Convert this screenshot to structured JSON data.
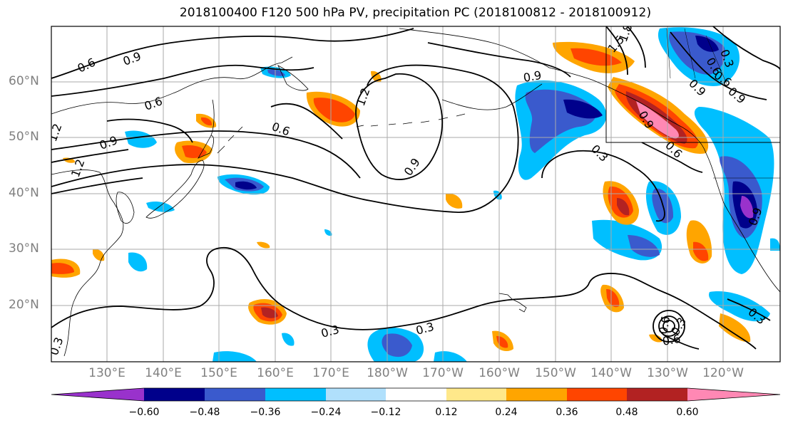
{
  "title": "2018100400 F120 500 hPa PV, precipitation PC (2018100812 - 2018100912)",
  "lat_labels": [
    "60°N",
    "50°N",
    "40°N",
    "30°N",
    "20°N"
  ],
  "lon_labels": [
    "130°E",
    "140°E",
    "150°E",
    "160°E",
    "170°E",
    "180°W",
    "170°W",
    "160°W",
    "150°W",
    "140°W",
    "130°W",
    "120°W"
  ],
  "contour_labels": [
    "0.6",
    "0.9",
    "0.6",
    "0.9",
    "0.6",
    "1.2",
    "0.9",
    "0.9",
    "1.2",
    "0.3",
    "0.3",
    "0.3",
    "0.6",
    "0.9",
    "1.5",
    "1.8",
    "0.6",
    "0.9",
    "0.3",
    "0.6",
    "0.3",
    "0.9",
    "0.6",
    "0.3",
    "0.6",
    "0.9",
    "0.3",
    "1.2"
  ],
  "colorbar": {
    "tick_labels": [
      "−0.60",
      "−0.48",
      "−0.36",
      "−0.24",
      "−0.12",
      "0.12",
      "0.24",
      "0.36",
      "0.48",
      "0.60"
    ],
    "colors": [
      "#9932cc",
      "#00008b",
      "#3a5acd",
      "#00bfff",
      "#b0e0fc",
      "#ffffff",
      "#ffe88a",
      "#ffa500",
      "#ff4500",
      "#b22222",
      "#ff88b4"
    ]
  },
  "chart_data": {
    "type": "heatmap",
    "title": "2018100400 F120 500 hPa PV, precipitation PC (2018100812 - 2018100912)",
    "variables": [
      "500 hPa PV (contours)",
      "precipitation PC (shading)"
    ],
    "lon_range": [
      "120°E",
      "115°W"
    ],
    "lat_range": [
      "10°N",
      "70°N"
    ],
    "color_levels": [
      -0.6,
      -0.48,
      -0.36,
      -0.24,
      -0.12,
      0.12,
      0.24,
      0.36,
      0.48,
      0.6
    ],
    "grid": true
  }
}
